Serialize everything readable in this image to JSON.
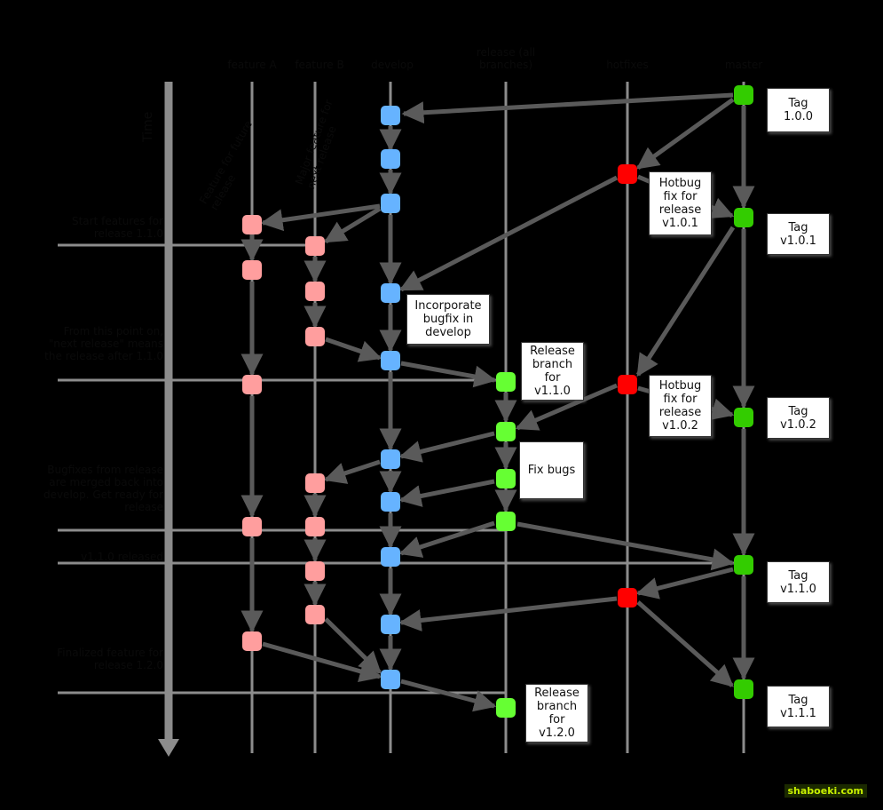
{
  "colors": {
    "line": "#8c8c8c",
    "arrow": "#5a5a5a",
    "feature": "#ff9e9e",
    "develop": "#66b3ff",
    "release": "#66ff33",
    "hotfix": "#ff0000",
    "master": "#33cc00",
    "background": "#000000"
  },
  "columns": {
    "feature_a": "feature A",
    "feature_b": "feature B",
    "develop": "develop",
    "release": "release (all branches)",
    "hotfixes": "hotfixes",
    "master": "master"
  },
  "time_label": "Time",
  "column_notes": {
    "feature_future": "Feature for future release",
    "feature_major": "Major feature for next release"
  },
  "side_notes": {
    "start_features": "Start features for release 1.1.0",
    "scheduled": "From this point on, \"next release\" means the release after 1.1.0",
    "bugfixes_merged": "Bugfixes from release are merged back into develop. Get ready for release",
    "released": "v1.1.0 released",
    "finalized": "Finalized feature for release 1.2.0"
  },
  "tags": [
    {
      "id": "tag-1-0-0",
      "line1": "Tag",
      "line2": "1.0.0"
    },
    {
      "id": "tag-v1-0-1",
      "line1": "Tag",
      "line2": "v1.0.1"
    },
    {
      "id": "tag-v1-0-2",
      "line1": "Tag",
      "line2": "v1.0.2"
    },
    {
      "id": "tag-v1-1-0",
      "line1": "Tag",
      "line2": "v1.1.0"
    },
    {
      "id": "tag-v1-1-1",
      "line1": "Tag",
      "line2": "v1.1.1"
    }
  ],
  "callouts": {
    "hotbug_101": [
      "Hotbug",
      "fix for",
      "release",
      "v1.0.1"
    ],
    "hotbug_102": [
      "Hotbug",
      "fix for",
      "release",
      "v1.0.2"
    ],
    "incorporate": [
      "Incorporate",
      "bugfix in",
      "develop"
    ],
    "release_110": [
      "Release",
      "branch",
      "for",
      "v1.1.0"
    ],
    "fix_bugs": [
      "Fix bugs"
    ],
    "release_120": [
      "Release",
      "branch",
      "for",
      "v1.2.0"
    ]
  },
  "watermark": "shaboeki.com"
}
